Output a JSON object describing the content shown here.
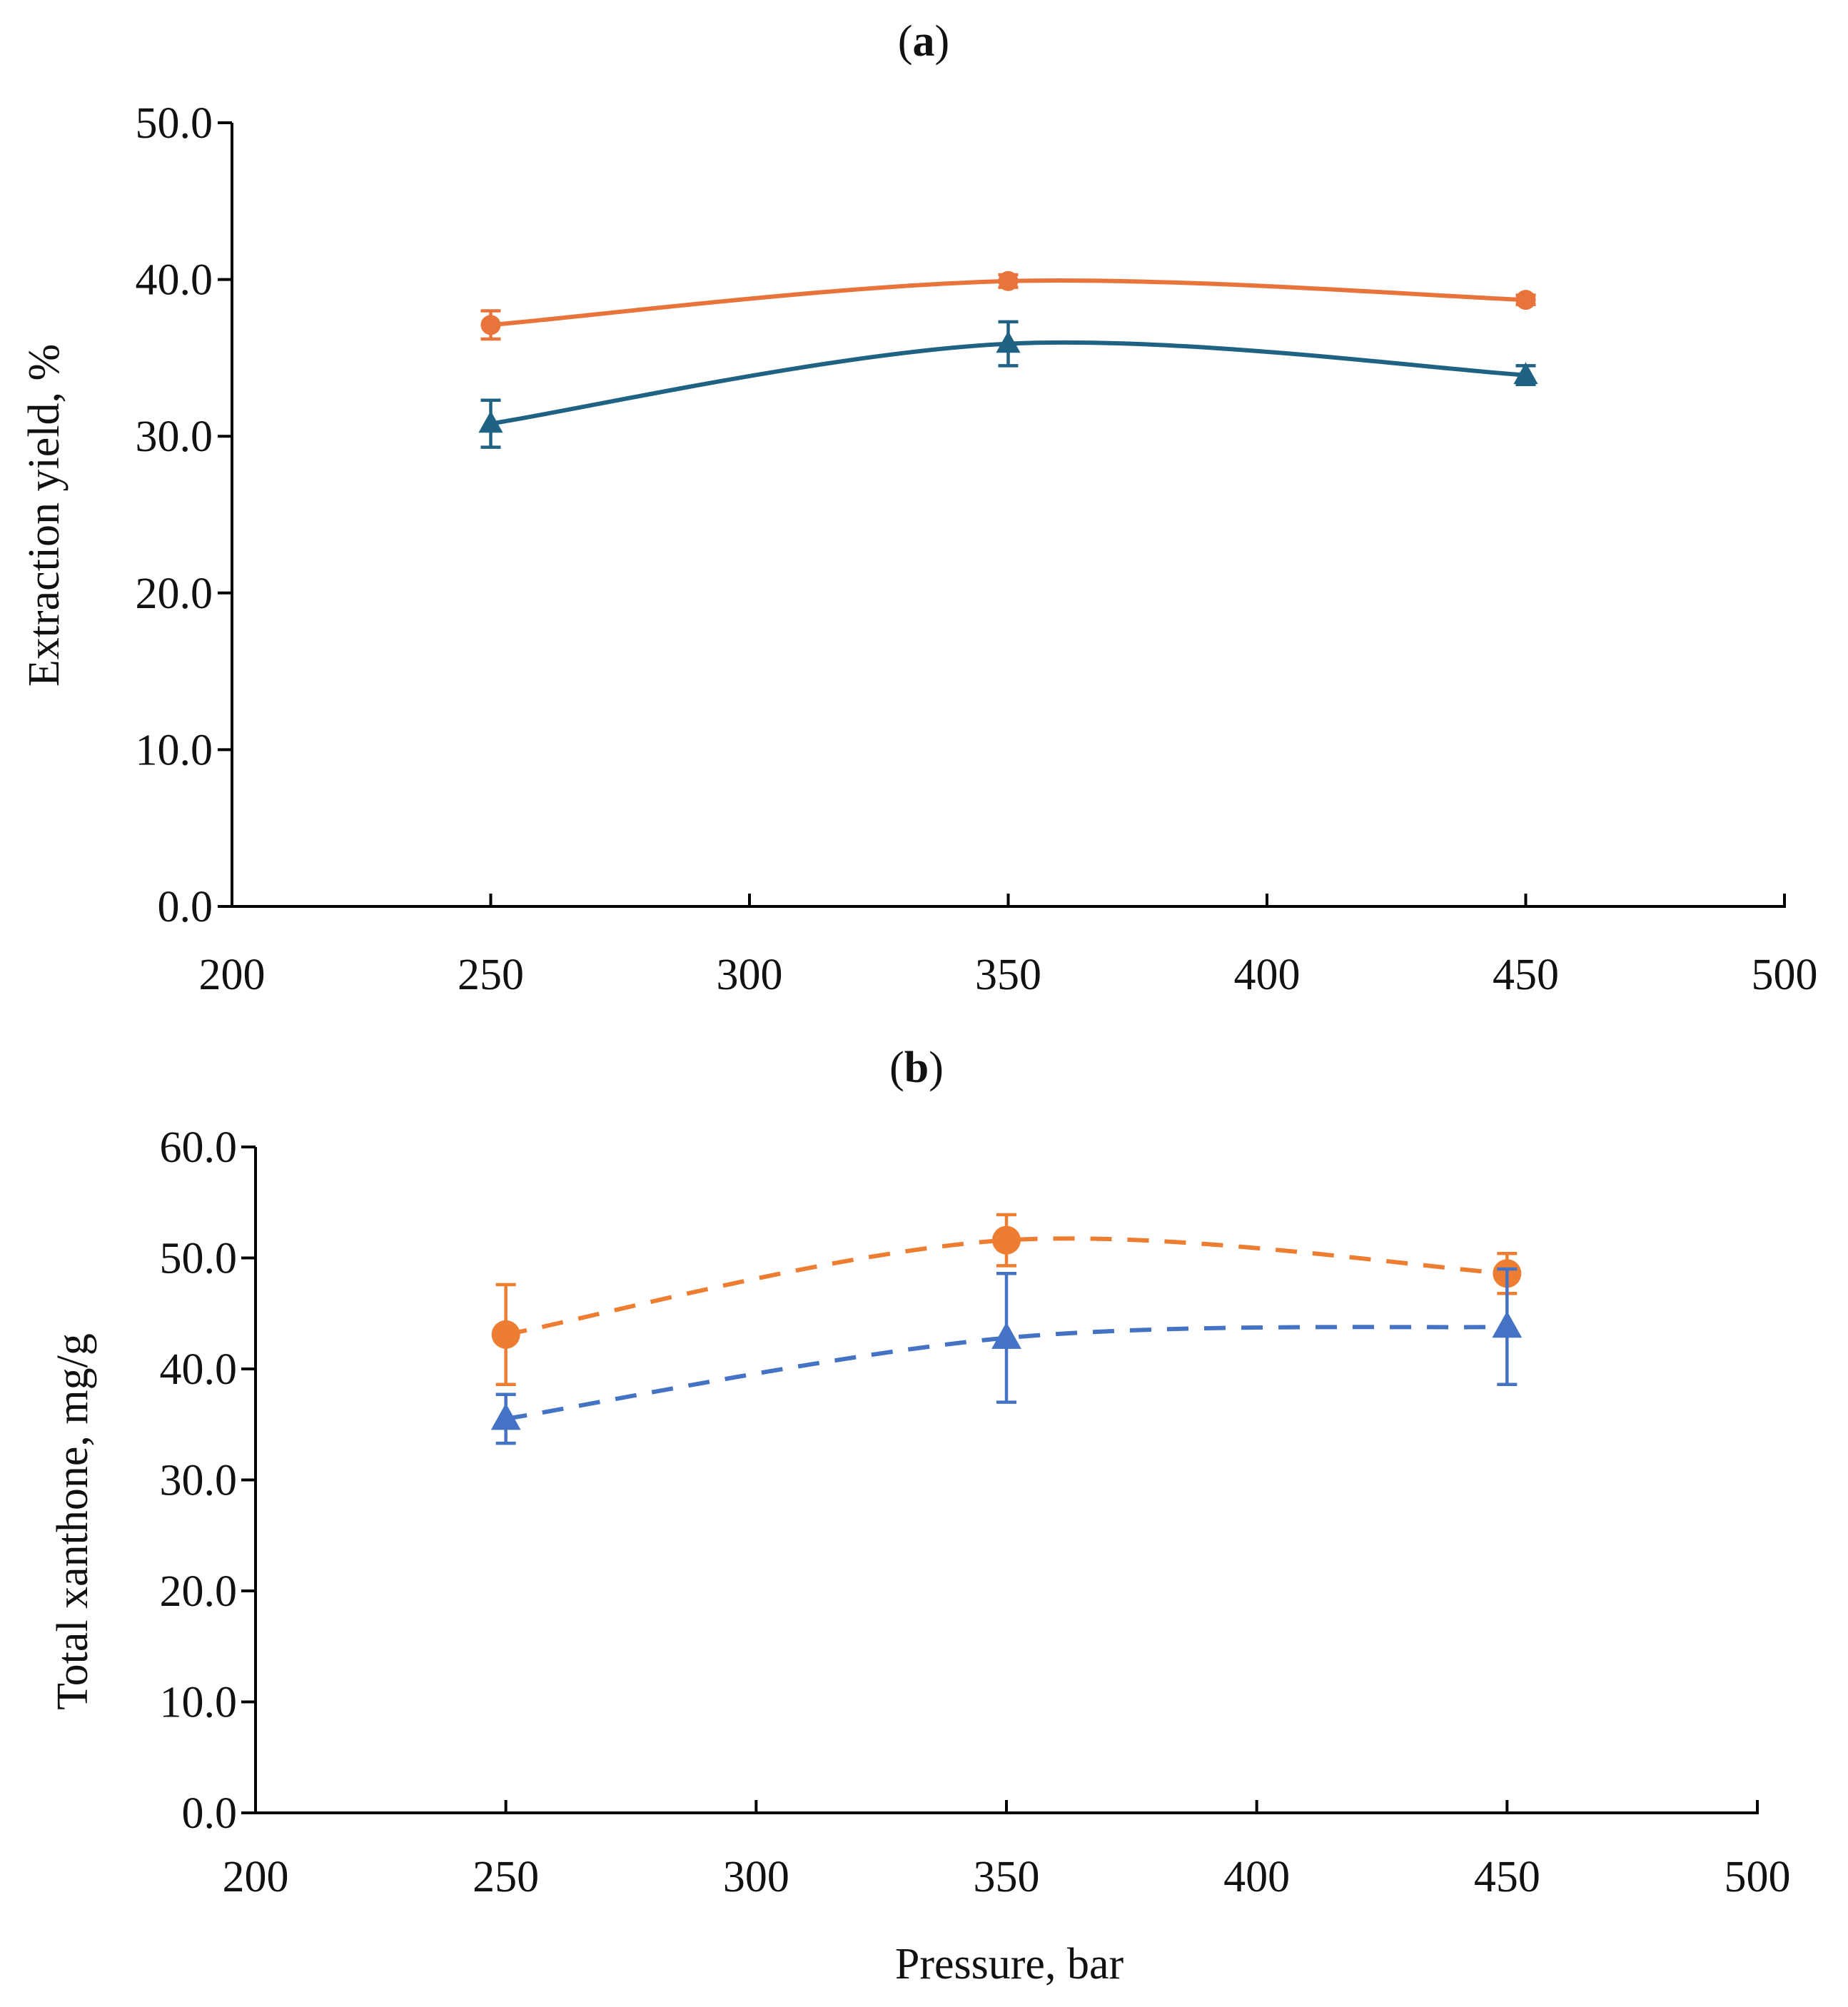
{
  "chart_data": [
    {
      "type": "line",
      "panel_label": "a",
      "title": "",
      "xlabel": "",
      "ylabel": "Extraction yield, %",
      "xlim": [
        200,
        500
      ],
      "ylim": [
        0,
        50
      ],
      "x_ticks": [
        200,
        250,
        300,
        350,
        400,
        450,
        500
      ],
      "y_ticks": [
        0,
        10,
        20,
        30,
        40,
        50
      ],
      "x_tick_labels": [
        "200",
        "250",
        "300",
        "350",
        "400",
        "450",
        "500"
      ],
      "y_tick_labels": [
        "0.0",
        "10.0",
        "20.0",
        "30.0",
        "40.0",
        "50.0"
      ],
      "grid": false,
      "legend": "none",
      "series": [
        {
          "name": "circle series",
          "marker": "circle",
          "line": "solid",
          "color": "#E8743B",
          "x": [
            250,
            350,
            450
          ],
          "values": [
            37.1,
            39.9,
            38.7
          ],
          "errors": [
            0.9,
            0.4,
            0.3
          ]
        },
        {
          "name": "triangle series",
          "marker": "triangle",
          "line": "solid",
          "color": "#1F6283",
          "x": [
            250,
            350,
            450
          ],
          "values": [
            30.8,
            35.9,
            33.9
          ],
          "errors": [
            1.5,
            1.4,
            0.6
          ]
        }
      ]
    },
    {
      "type": "line",
      "panel_label": "b",
      "title": "",
      "xlabel": "Pressure, bar",
      "ylabel": "Total xanthone, mg/g",
      "xlim": [
        200,
        500
      ],
      "ylim": [
        0,
        60
      ],
      "x_ticks": [
        200,
        250,
        300,
        350,
        400,
        450,
        500
      ],
      "y_ticks": [
        0,
        10,
        20,
        30,
        40,
        50,
        60
      ],
      "x_tick_labels": [
        "200",
        "250",
        "300",
        "350",
        "400",
        "450",
        "500"
      ],
      "y_tick_labels": [
        "0.0",
        "10.0",
        "20.0",
        "30.0",
        "40.0",
        "50.0",
        "60.0"
      ],
      "grid": false,
      "legend": "none",
      "series": [
        {
          "name": "circle series",
          "marker": "circle",
          "line": "dashed",
          "color": "#ED7D31",
          "x": [
            250,
            350,
            450
          ],
          "values": [
            43.1,
            51.6,
            48.6
          ],
          "errors": [
            4.5,
            2.3,
            1.8
          ]
        },
        {
          "name": "triangle series",
          "marker": "triangle",
          "line": "dashed",
          "color": "#4472C4",
          "x": [
            250,
            350,
            450
          ],
          "values": [
            35.5,
            42.8,
            43.8
          ],
          "errors": [
            2.2,
            5.8,
            5.2
          ]
        }
      ]
    }
  ]
}
